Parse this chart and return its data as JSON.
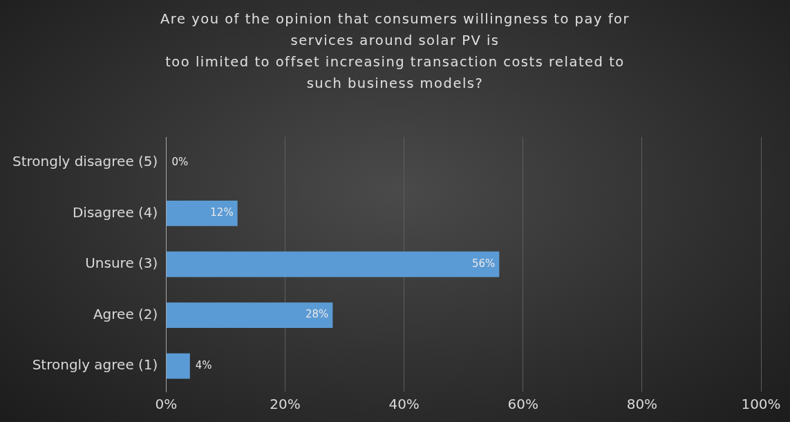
{
  "chart_data": {
    "type": "bar",
    "orientation": "horizontal",
    "title": "Are you of the opinion that consumers willingness to pay for\nservices around solar PV is\ntoo limited to offset increasing transaction costs related to\nsuch business models?",
    "categories": [
      "Strongly disagree (5)",
      "Disagree (4)",
      "Unsure (3)",
      "Agree (2)",
      "Strongly agree (1)"
    ],
    "values": [
      0,
      12,
      56,
      28,
      4
    ],
    "color": "#5b9bd5",
    "xlim": [
      0,
      100
    ],
    "xticks": [
      {
        "value": 0,
        "label": "0%"
      },
      {
        "value": 20,
        "label": "20%"
      },
      {
        "value": 40,
        "label": "40%"
      },
      {
        "value": 60,
        "label": "60%"
      },
      {
        "value": 80,
        "label": "80%"
      },
      {
        "value": 100,
        "label": "100%"
      }
    ],
    "value_labels": [
      "0%",
      "12%",
      "56%",
      "28%",
      "4%"
    ],
    "grid": "x",
    "legend": false
  }
}
